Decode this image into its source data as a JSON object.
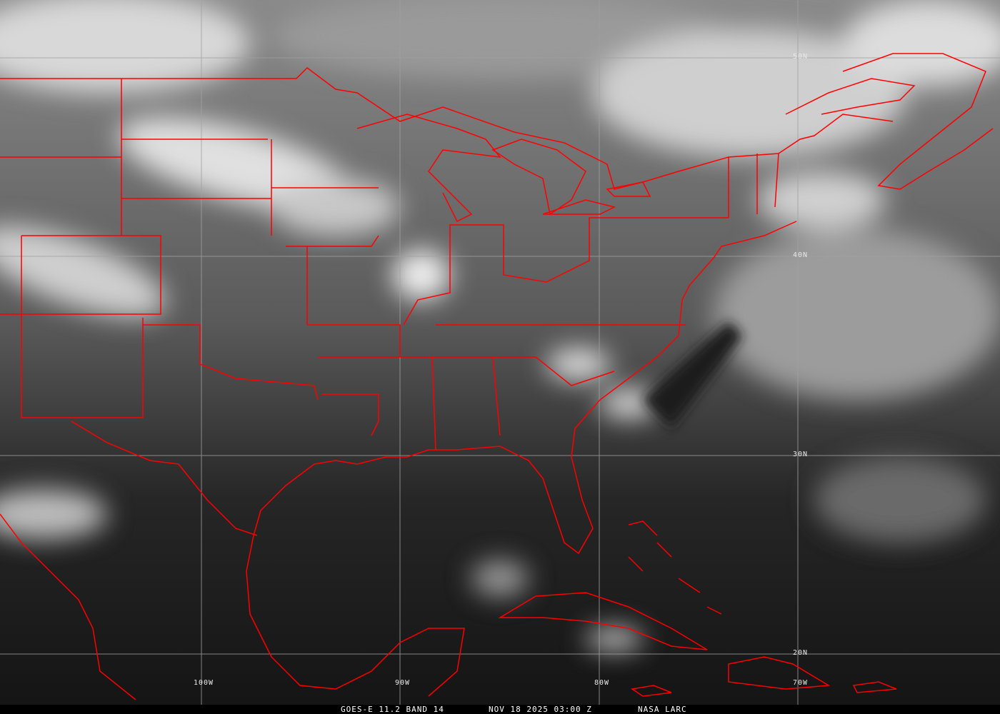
{
  "caption": {
    "satellite": "GOES-E 11.2 BAND 14",
    "datetime": "NOV 18 2025 03:00 Z",
    "source": "NASA LARC"
  },
  "grid_labels": {
    "lat": [
      "50N",
      "40N",
      "30N",
      "20N"
    ],
    "lon": [
      "100W",
      "90W",
      "80W",
      "70W"
    ]
  },
  "colors": {
    "borders": "#ff0000",
    "grid": "#a0a0a0",
    "background": "#000000"
  }
}
